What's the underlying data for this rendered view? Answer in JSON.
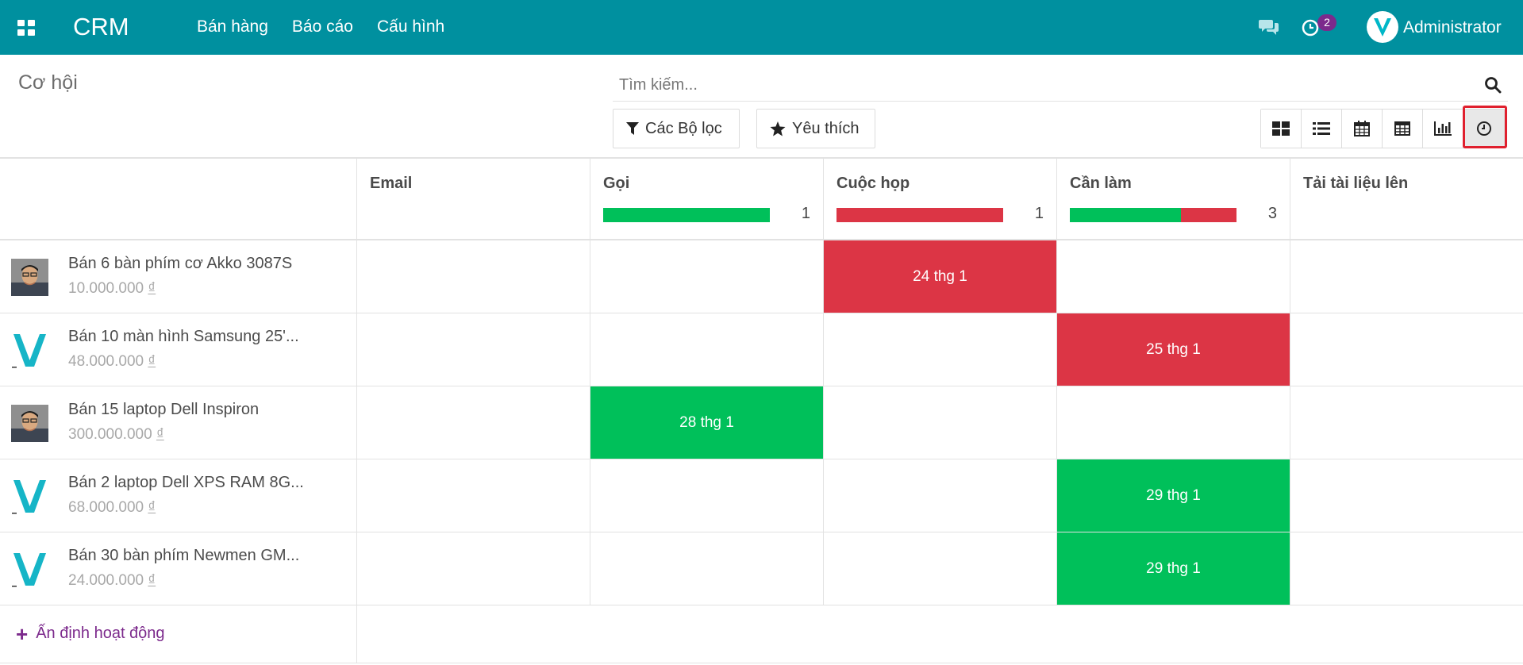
{
  "navbar": {
    "brand": "CRM",
    "menu": [
      "Bán hàng",
      "Báo cáo",
      "Cấu hình"
    ],
    "activity_badge": "2",
    "user": "Administrator",
    "accent": "#00909f"
  },
  "control": {
    "title": "Cơ hội",
    "search_placeholder": "Tìm kiếm...",
    "filters_label": "Các Bộ lọc",
    "favorites_label": "Yêu thích",
    "views": [
      "kanban-icon",
      "list-icon",
      "calendar-icon",
      "pivot-icon",
      "graph-icon",
      "activity-icon"
    ],
    "active_view": "activity-icon"
  },
  "columns": [
    {
      "title": "Email",
      "count": "",
      "green": 0,
      "red": 0
    },
    {
      "title": "Gọi",
      "count": "1",
      "green": 1,
      "red": 0
    },
    {
      "title": "Cuộc họp",
      "count": "1",
      "green": 0,
      "red": 1
    },
    {
      "title": "Cần làm",
      "count": "3",
      "green": 2,
      "red": 1
    },
    {
      "title": "Tải tài liệu lên",
      "count": "",
      "green": 0,
      "red": 0
    }
  ],
  "records": [
    {
      "name": "Bán 6 bàn phím cơ Akko 3087S",
      "amount": "10.000.000",
      "currency": "₫",
      "avatar": "photo",
      "activity_col": 2,
      "activity_date": "24 thg 1",
      "activity_state": "red"
    },
    {
      "name": "Bán 10 màn hình Samsung 25'...",
      "amount": "48.000.000",
      "currency": "₫",
      "avatar": "logo",
      "activity_col": 3,
      "activity_date": "25 thg 1",
      "activity_state": "red"
    },
    {
      "name": "Bán 15 laptop Dell Inspiron",
      "amount": "300.000.000",
      "currency": "₫",
      "avatar": "photo",
      "activity_col": 1,
      "activity_date": "28 thg 1",
      "activity_state": "green"
    },
    {
      "name": "Bán 2 laptop Dell XPS RAM 8G...",
      "amount": "68.000.000",
      "currency": "₫",
      "avatar": "logo",
      "activity_col": 3,
      "activity_date": "29 thg 1",
      "activity_state": "green"
    },
    {
      "name": "Bán 30 bàn phím Newmen GM...",
      "amount": "24.000.000",
      "currency": "₫",
      "avatar": "logo",
      "activity_col": 3,
      "activity_date": "29 thg 1",
      "activity_state": "green"
    }
  ],
  "footer": {
    "schedule_label": "Ấn định hoạt động"
  }
}
